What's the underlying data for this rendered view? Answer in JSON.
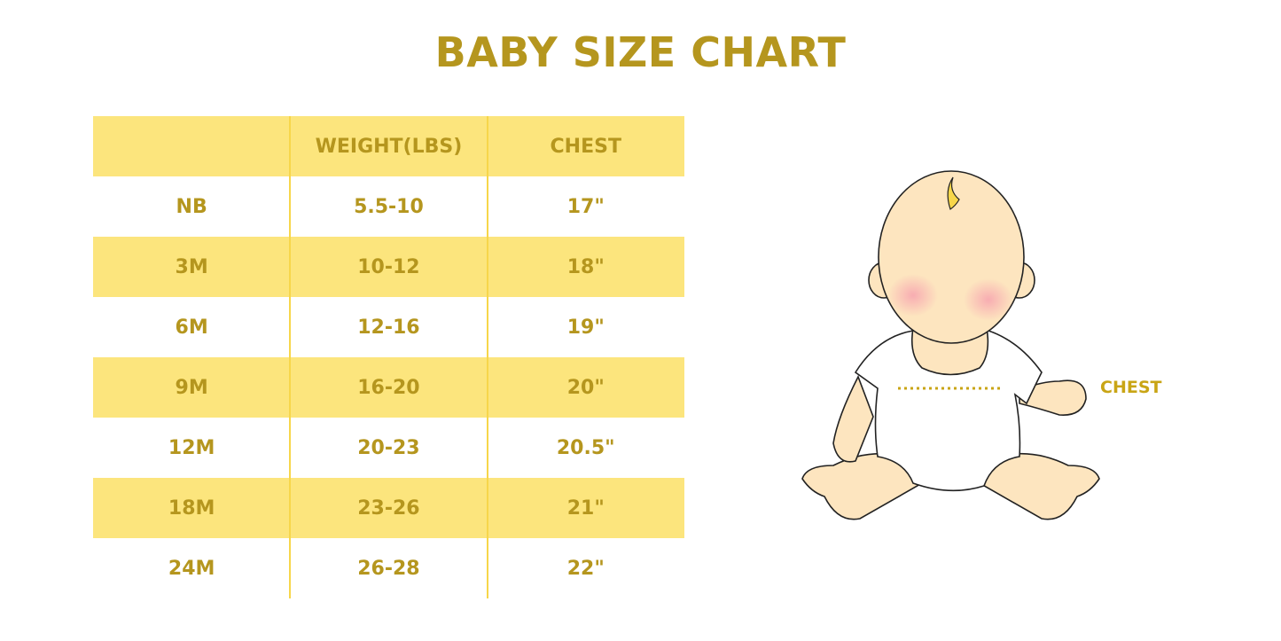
{
  "title": "BABY SIZE CHART",
  "table": {
    "headers": [
      "",
      "WEIGHT(LBS)",
      "CHEST"
    ],
    "rows": [
      [
        "NB",
        "5.5-10",
        "17\""
      ],
      [
        "3M",
        "10-12",
        "18\""
      ],
      [
        "6M",
        "12-16",
        "19\""
      ],
      [
        "9M",
        "16-20",
        "20\""
      ],
      [
        "12M",
        "20-23",
        "20.5\""
      ],
      [
        "18M",
        "23-26",
        "21\""
      ],
      [
        "24M",
        "26-28",
        "22\""
      ]
    ]
  },
  "illustration": {
    "chest_label": "CHEST"
  },
  "colors": {
    "text": "#b5961e",
    "stripe": "#fce57d",
    "skin": "#fde5bf",
    "hair": "#f7d64a"
  }
}
